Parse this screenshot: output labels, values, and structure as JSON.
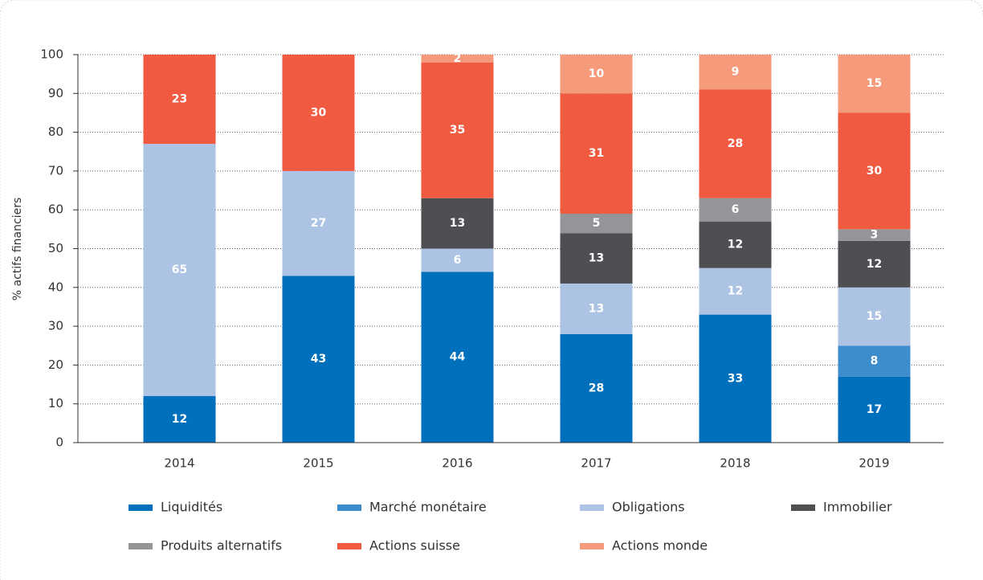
{
  "chart_data": {
    "type": "stacked_bar",
    "y_label": "% actifs financiers",
    "categories": [
      "2014",
      "2015",
      "2016",
      "2017",
      "2018",
      "2019"
    ],
    "series": [
      {
        "name": "Liquidités",
        "color": "#0070bc",
        "values": [
          12,
          43,
          44,
          28,
          33,
          17
        ]
      },
      {
        "name": "Marché monétaire",
        "color": "#3d8ccc",
        "values": [
          null,
          null,
          null,
          null,
          null,
          8
        ]
      },
      {
        "name": "Obligations",
        "color": "#adc3e3",
        "values": [
          65,
          27,
          6,
          13,
          12,
          15
        ]
      },
      {
        "name": "Immobilier",
        "color": "#4d4f53",
        "values": [
          null,
          null,
          13,
          13,
          12,
          12
        ]
      },
      {
        "name": "Produits alternatifs",
        "color": "#939598",
        "values": [
          null,
          null,
          null,
          5,
          6,
          3
        ]
      },
      {
        "name": "Actions suisse",
        "color": "#f05a40",
        "values": [
          23,
          30,
          35,
          31,
          28,
          30
        ]
      },
      {
        "name": "Actions monde",
        "color": "#f59a7b",
        "values": [
          null,
          null,
          2,
          10,
          9,
          15
        ]
      }
    ],
    "ylim": [
      0,
      100
    ],
    "yticks": [
      0,
      10,
      20,
      30,
      40,
      50,
      60,
      70,
      80,
      90,
      100
    ],
    "grid": true
  }
}
